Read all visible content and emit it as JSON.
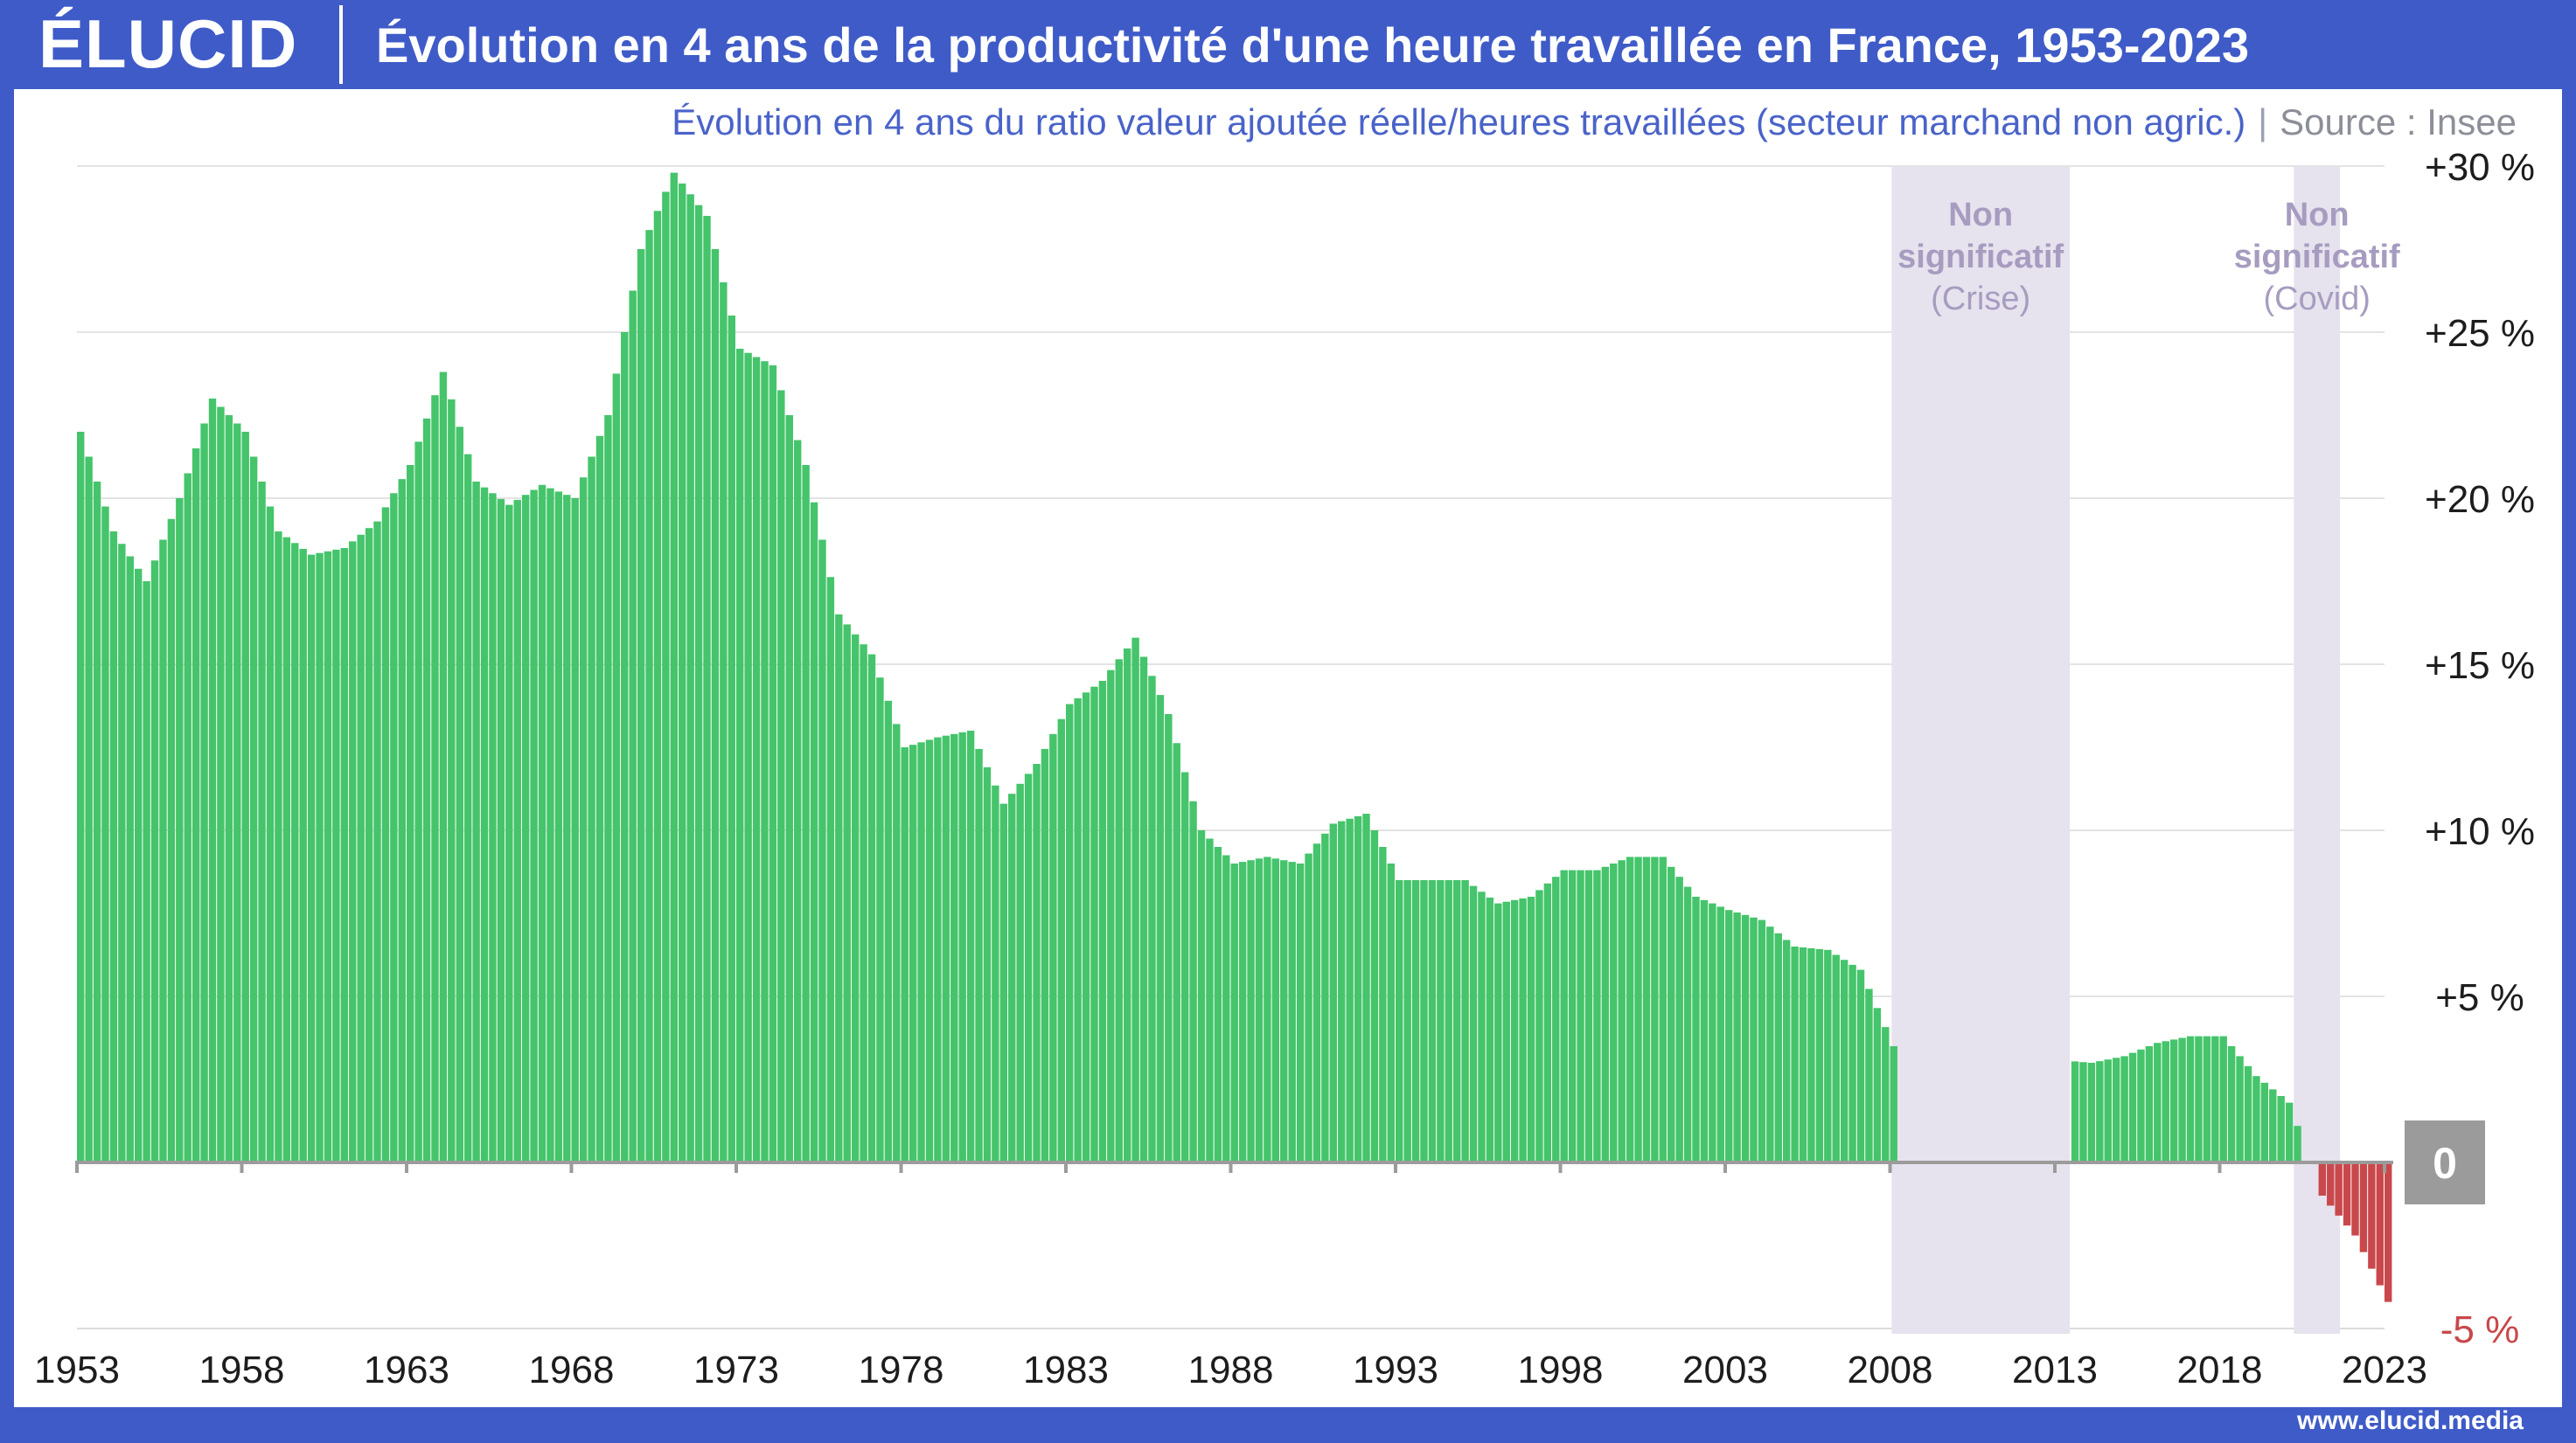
{
  "brand": {
    "logo": "ÉLUCID",
    "url": "www.elucid.media"
  },
  "title": "Évolution en 4 ans de la productivité d'une heure travaillée en France, 1953-2023",
  "subtitle": "Évolution en 4 ans du ratio valeur ajoutée réelle/heures travaillées (secteur marchand non agric.)",
  "source": "Source : Insee",
  "colors": {
    "header": "#3f5bc8",
    "positive": "#45c46b",
    "negative": "#c9484b",
    "shade": "#e6e2ee",
    "shade_text": "#a79cc0",
    "zero_badge": "#9b9b9b"
  },
  "chart_data": {
    "type": "bar",
    "x_range": [
      "1953",
      "2023"
    ],
    "ylim": [
      -5,
      30
    ],
    "y_ticks": [
      {
        "value": 30,
        "label": "+30 %"
      },
      {
        "value": 25,
        "label": "+25 %"
      },
      {
        "value": 20,
        "label": "+20 %"
      },
      {
        "value": 15,
        "label": "+15 %"
      },
      {
        "value": 10,
        "label": "+10 %"
      },
      {
        "value": 5,
        "label": "+5 %"
      },
      {
        "value": 0,
        "label": "0"
      },
      {
        "value": -5,
        "label": "-5 %"
      }
    ],
    "x_ticks": [
      "1953",
      "1958",
      "1963",
      "1968",
      "1973",
      "1978",
      "1983",
      "1988",
      "1993",
      "1998",
      "2003",
      "2008",
      "2013",
      "2018",
      "2023"
    ],
    "grid": true,
    "frequency": "quarterly",
    "start": "1953 Q1",
    "annual_values": [
      [
        1953,
        22.0
      ],
      [
        1954,
        19.0
      ],
      [
        1955,
        17.5
      ],
      [
        1956,
        20.0
      ],
      [
        1957,
        23.0
      ],
      [
        1958,
        22.0
      ],
      [
        1959,
        19.0
      ],
      [
        1960,
        18.3
      ],
      [
        1961,
        18.5
      ],
      [
        1962,
        19.3
      ],
      [
        1963,
        21.0
      ],
      [
        1964,
        23.8
      ],
      [
        1965,
        20.5
      ],
      [
        1966,
        19.8
      ],
      [
        1967,
        20.4
      ],
      [
        1968,
        20.0
      ],
      [
        1969,
        22.5
      ],
      [
        1970,
        27.5
      ],
      [
        1971,
        29.8
      ],
      [
        1972,
        28.5
      ],
      [
        1973,
        24.5
      ],
      [
        1974,
        24.0
      ],
      [
        1975,
        21.0
      ],
      [
        1976,
        16.5
      ],
      [
        1977,
        15.3
      ],
      [
        1978,
        12.5
      ],
      [
        1979,
        12.8
      ],
      [
        1980,
        13.0
      ],
      [
        1981,
        10.8
      ],
      [
        1982,
        12.0
      ],
      [
        1983,
        13.8
      ],
      [
        1984,
        14.5
      ],
      [
        1985,
        15.8
      ],
      [
        1986,
        13.5
      ],
      [
        1987,
        10.0
      ],
      [
        1988,
        9.0
      ],
      [
        1989,
        9.2
      ],
      [
        1990,
        9.0
      ],
      [
        1991,
        10.2
      ],
      [
        1992,
        10.5
      ],
      [
        1993,
        8.5
      ],
      [
        1994,
        8.5
      ],
      [
        1995,
        8.5
      ],
      [
        1996,
        7.8
      ],
      [
        1997,
        8.0
      ],
      [
        1998,
        8.8
      ],
      [
        1999,
        8.8
      ],
      [
        2000,
        9.2
      ],
      [
        2001,
        9.2
      ],
      [
        2002,
        8.0
      ],
      [
        2003,
        7.6
      ],
      [
        2004,
        7.3
      ],
      [
        2005,
        6.5
      ],
      [
        2006,
        6.4
      ],
      [
        2007,
        5.8
      ],
      [
        2008,
        3.5
      ],
      [
        2014,
        3.0
      ],
      [
        2015,
        3.2
      ],
      [
        2016,
        3.6
      ],
      [
        2017,
        3.8
      ],
      [
        2018,
        3.8
      ],
      [
        2019,
        2.6
      ],
      [
        2020,
        1.8
      ],
      [
        2021,
        -1.0
      ],
      [
        2022,
        -2.2
      ],
      [
        2023,
        -4.2
      ]
    ],
    "omitted_periods": [
      {
        "label_line1": "Non",
        "label_line2": "significatif",
        "label_line3": "(Crise)"
      },
      {
        "label_line1": "Non",
        "label_line2": "significatif",
        "label_line3": "(Covid)"
      }
    ]
  }
}
